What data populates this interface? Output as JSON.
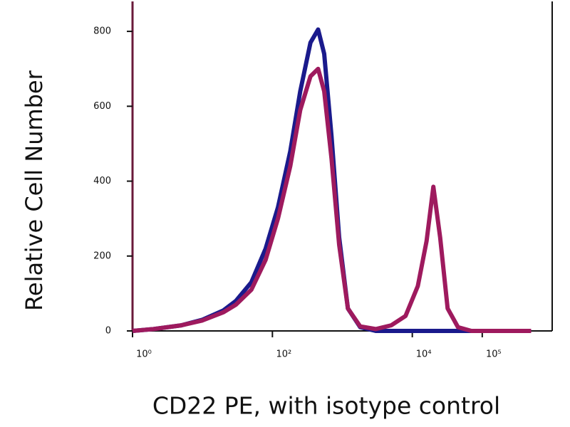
{
  "chart_data": {
    "type": "line",
    "x_label": "CD22 PE, with isotype control",
    "y_label": "Relative Cell Number",
    "x": [
      1,
      2,
      5,
      10,
      20,
      30,
      50,
      80,
      120,
      180,
      250,
      350,
      450,
      550,
      700,
      900,
      1200,
      1800,
      3000,
      5000,
      8000,
      12000,
      16000,
      20000,
      25000,
      32000,
      45000,
      70000,
      150000,
      500000
    ],
    "series": [
      {
        "color": "#1a1a8c",
        "values": [
          0,
          5,
          15,
          30,
          55,
          80,
          130,
          220,
          330,
          480,
          640,
          770,
          805,
          740,
          520,
          250,
          60,
          10,
          0,
          0,
          0,
          0,
          0,
          0,
          0,
          0,
          0,
          0,
          0,
          0
        ]
      },
      {
        "color": "#9e1a5e",
        "values": [
          0,
          5,
          15,
          28,
          50,
          70,
          110,
          190,
          300,
          440,
          590,
          680,
          700,
          640,
          460,
          230,
          60,
          12,
          5,
          15,
          40,
          120,
          240,
          385,
          250,
          60,
          10,
          0,
          0,
          0
        ]
      }
    ],
    "xlog": true,
    "xlim": [
      1,
      1000000
    ],
    "xticks": [
      {
        "value": 1,
        "label": "10⁰"
      },
      {
        "value": 100,
        "label": "10²"
      },
      {
        "value": 10000,
        "label": "10⁴"
      },
      {
        "value": 100000,
        "label": "10⁵"
      }
    ],
    "ylim": [
      0,
      880
    ],
    "yticks": [
      0,
      200,
      400,
      600,
      800
    ]
  }
}
